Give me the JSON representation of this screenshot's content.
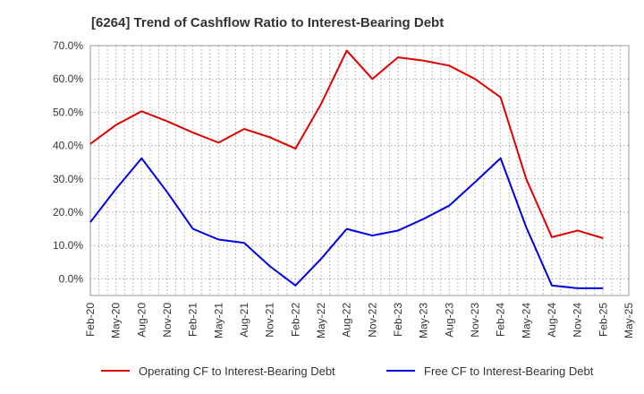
{
  "chart_data": {
    "type": "line",
    "title": "[6264]  Trend of Cashflow Ratio to Interest-Bearing Debt",
    "xlabel": "",
    "ylabel": "",
    "x_ticks": [
      "Feb-20",
      "May-20",
      "Aug-20",
      "Nov-20",
      "Feb-21",
      "May-21",
      "Aug-21",
      "Nov-21",
      "Feb-22",
      "May-22",
      "Aug-22",
      "Nov-22",
      "Feb-23",
      "May-23",
      "Aug-23",
      "Nov-23",
      "Feb-24",
      "May-24",
      "Aug-24",
      "Nov-24",
      "Feb-25",
      "May-25"
    ],
    "y_ticks": [
      "0.0%",
      "10.0%",
      "20.0%",
      "30.0%",
      "40.0%",
      "50.0%",
      "60.0%",
      "70.0%"
    ],
    "ylim": [
      -5,
      70
    ],
    "grid": true,
    "legend_position": "bottom",
    "series": [
      {
        "name": "Operating CF to Interest-Bearing Debt",
        "color": "#e00000",
        "values": [
          40.5,
          46.2,
          50.3,
          47.3,
          43.9,
          40.9,
          45.0,
          42.5,
          39.1,
          52.5,
          68.5,
          60.0,
          66.5,
          65.5,
          64.0,
          60.0,
          54.5,
          30.0,
          12.5,
          14.5,
          12.2
        ]
      },
      {
        "name": "Free CF to Interest-Bearing Debt",
        "color": "#0000e0",
        "values": [
          17.0,
          27.0,
          36.2,
          26.0,
          15.0,
          11.8,
          10.8,
          3.8,
          -2.0,
          6.0,
          15.0,
          13.0,
          14.5,
          18.0,
          22.0,
          29.0,
          36.2,
          15.5,
          -2.0,
          -2.8,
          -2.8
        ]
      }
    ]
  }
}
